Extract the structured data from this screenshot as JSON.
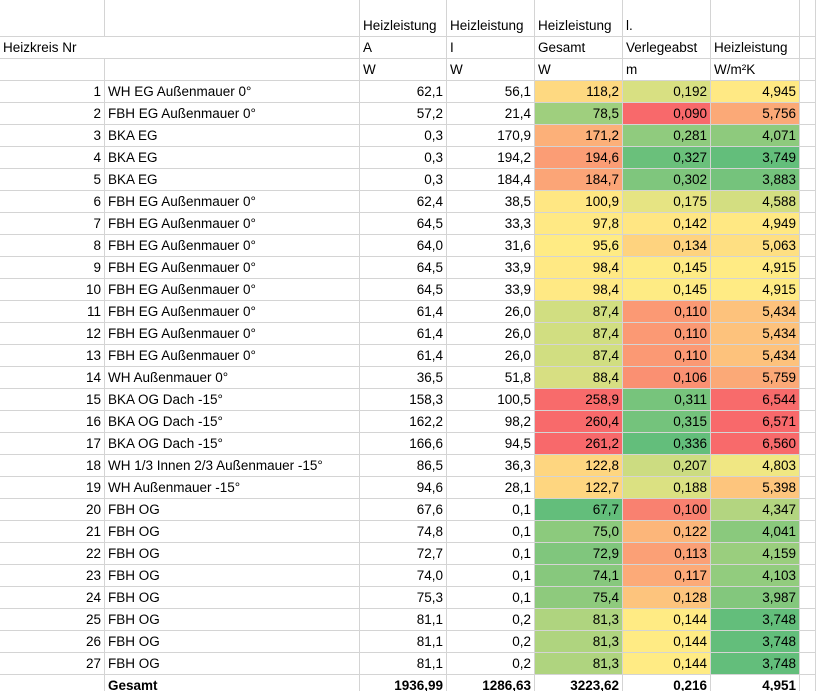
{
  "columns": [
    {
      "line2": "Heizkreis Nr"
    },
    {},
    {
      "line1": "Heizleistung",
      "line2": "A",
      "line3": "W"
    },
    {
      "line1": "Heizleistung",
      "line2": "I",
      "line3": "W"
    },
    {
      "line1": "Heizleistung",
      "line2": "Gesamt",
      "line3": "W"
    },
    {
      "line1": "l.",
      "line2": "Verlegeabst",
      "line3": "m"
    },
    {
      "line2": "Heizleistung",
      "line3": "W/m²K"
    }
  ],
  "rows": [
    {
      "nr": "1",
      "name": "WH EG Außenmauer 0°",
      "values": [
        "62,1",
        "56,1",
        "118,2",
        "0,192",
        "4,945"
      ]
    },
    {
      "nr": "2",
      "name": "FBH EG Außenmauer 0°",
      "values": [
        "57,2",
        "21,4",
        "78,5",
        "0,090",
        "5,756"
      ]
    },
    {
      "nr": "3",
      "name": "BKA EG",
      "values": [
        "0,3",
        "170,9",
        "171,2",
        "0,281",
        "4,071"
      ]
    },
    {
      "nr": "4",
      "name": "BKA EG",
      "values": [
        "0,3",
        "194,2",
        "194,6",
        "0,327",
        "3,749"
      ]
    },
    {
      "nr": "5",
      "name": "BKA EG",
      "values": [
        "0,3",
        "184,4",
        "184,7",
        "0,302",
        "3,883"
      ]
    },
    {
      "nr": "6",
      "name": "FBH EG Außenmauer 0°",
      "values": [
        "62,4",
        "38,5",
        "100,9",
        "0,175",
        "4,588"
      ]
    },
    {
      "nr": "7",
      "name": "FBH EG Außenmauer 0°",
      "values": [
        "64,5",
        "33,3",
        "97,8",
        "0,142",
        "4,949"
      ]
    },
    {
      "nr": "8",
      "name": "FBH EG Außenmauer 0°",
      "values": [
        "64,0",
        "31,6",
        "95,6",
        "0,134",
        "5,063"
      ]
    },
    {
      "nr": "9",
      "name": "FBH EG Außenmauer 0°",
      "values": [
        "64,5",
        "33,9",
        "98,4",
        "0,145",
        "4,915"
      ]
    },
    {
      "nr": "10",
      "name": "FBH EG Außenmauer 0°",
      "values": [
        "64,5",
        "33,9",
        "98,4",
        "0,145",
        "4,915"
      ]
    },
    {
      "nr": "11",
      "name": "FBH EG Außenmauer 0°",
      "values": [
        "61,4",
        "26,0",
        "87,4",
        "0,110",
        "5,434"
      ]
    },
    {
      "nr": "12",
      "name": "FBH EG Außenmauer 0°",
      "values": [
        "61,4",
        "26,0",
        "87,4",
        "0,110",
        "5,434"
      ]
    },
    {
      "nr": "13",
      "name": "FBH EG Außenmauer 0°",
      "values": [
        "61,4",
        "26,0",
        "87,4",
        "0,110",
        "5,434"
      ]
    },
    {
      "nr": "14",
      "name": "WH Außenmauer 0°",
      "values": [
        "36,5",
        "51,8",
        "88,4",
        "0,106",
        "5,759"
      ]
    },
    {
      "nr": "15",
      "name": "BKA OG Dach -15°",
      "values": [
        "158,3",
        "100,5",
        "258,9",
        "0,311",
        "6,544"
      ]
    },
    {
      "nr": "16",
      "name": "BKA OG Dach -15°",
      "values": [
        "162,2",
        "98,2",
        "260,4",
        "0,315",
        "6,571"
      ]
    },
    {
      "nr": "17",
      "name": "BKA OG Dach -15°",
      "values": [
        "166,6",
        "94,5",
        "261,2",
        "0,336",
        "6,560"
      ]
    },
    {
      "nr": "18",
      "name": "WH 1/3 Innen 2/3 Außenmauer -15°",
      "values": [
        "86,5",
        "36,3",
        "122,8",
        "0,207",
        "4,803"
      ]
    },
    {
      "nr": "19",
      "name": "WH Außenmauer -15°",
      "values": [
        "94,6",
        "28,1",
        "122,7",
        "0,188",
        "5,398"
      ]
    },
    {
      "nr": "20",
      "name": "FBH OG",
      "values": [
        "67,6",
        "0,1",
        "67,7",
        "0,100",
        "4,347"
      ]
    },
    {
      "nr": "21",
      "name": "FBH OG",
      "values": [
        "74,8",
        "0,1",
        "75,0",
        "0,122",
        "4,041"
      ]
    },
    {
      "nr": "22",
      "name": "FBH OG",
      "values": [
        "72,7",
        "0,1",
        "72,9",
        "0,113",
        "4,159"
      ]
    },
    {
      "nr": "23",
      "name": "FBH OG",
      "values": [
        "74,0",
        "0,1",
        "74,1",
        "0,117",
        "4,103"
      ]
    },
    {
      "nr": "24",
      "name": "FBH OG",
      "values": [
        "75,3",
        "0,1",
        "75,4",
        "0,128",
        "3,987"
      ]
    },
    {
      "nr": "25",
      "name": "FBH OG",
      "values": [
        "81,1",
        "0,2",
        "81,3",
        "0,144",
        "3,748"
      ]
    },
    {
      "nr": "26",
      "name": "FBH OG",
      "values": [
        "81,1",
        "0,2",
        "81,3",
        "0,144",
        "3,748"
      ]
    },
    {
      "nr": "27",
      "name": "FBH OG",
      "values": [
        "81,1",
        "0,2",
        "81,3",
        "0,144",
        "3,748"
      ]
    }
  ],
  "total": {
    "label": "Gesamt",
    "values": [
      "1936,99",
      "1286,63",
      "3223,62",
      "0,216",
      "4,951"
    ]
  },
  "heat_scale": {
    "low": "#63be7b",
    "mid": "#ffeb84",
    "high": "#f8696b"
  },
  "heat_columns": [
    {
      "index": 2,
      "reverse": false
    },
    {
      "index": 3,
      "reverse": true
    },
    {
      "index": 4,
      "reverse": false
    }
  ]
}
